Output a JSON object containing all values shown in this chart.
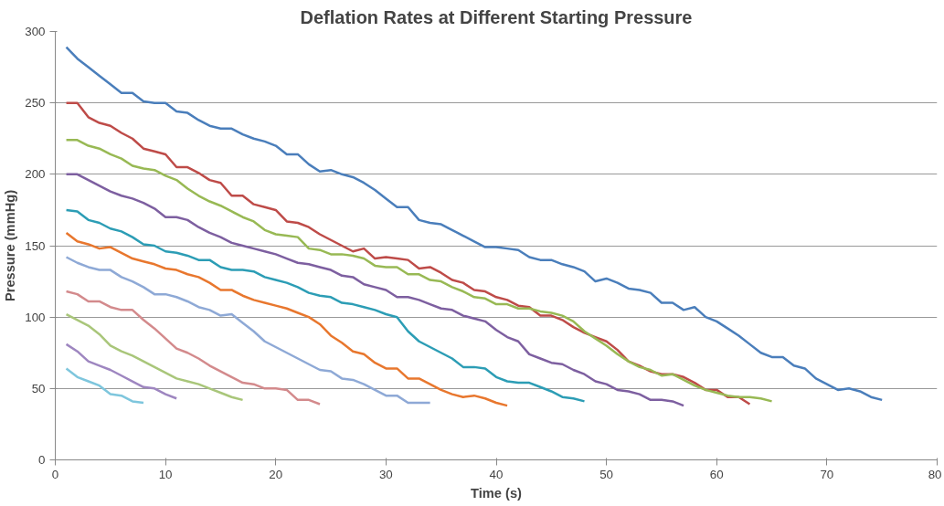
{
  "chart_data": {
    "type": "line",
    "title": "Deflation Rates at Different Starting Pressure",
    "xlabel": "Time (s)",
    "ylabel": "Pressure (mmHg)",
    "xlim": [
      0,
      80
    ],
    "xticks": [
      0,
      10,
      20,
      30,
      40,
      50,
      60,
      70,
      80
    ],
    "ylim": [
      0,
      300
    ],
    "yticks": [
      0,
      50,
      100,
      150,
      200,
      250,
      300
    ],
    "grid": "y",
    "marker": "none",
    "line_style": "solid",
    "series": [
      {
        "color": "#4a7ebb",
        "x": [
          1,
          2,
          3,
          4,
          5,
          6,
          7,
          8,
          9,
          10,
          11,
          12,
          13,
          14,
          15,
          16,
          17,
          18,
          19,
          20,
          21,
          22,
          23,
          24,
          25,
          26,
          27,
          28,
          29,
          30,
          31,
          32,
          33,
          34,
          35,
          36,
          37,
          38,
          39,
          40,
          41,
          42,
          43,
          44,
          45,
          46,
          47,
          48,
          49,
          50,
          51,
          52,
          53,
          54,
          55,
          56,
          57,
          58,
          59,
          60,
          61,
          62,
          63,
          64,
          65,
          66,
          67,
          68,
          69,
          70,
          71,
          72,
          73,
          74,
          75
        ],
        "values": [
          289,
          281,
          275,
          269,
          263,
          257,
          257,
          251,
          250,
          250,
          244,
          243,
          238,
          234,
          232,
          232,
          228,
          225,
          223,
          220,
          214,
          214,
          207,
          202,
          203,
          200,
          198,
          194,
          189,
          183,
          177,
          177,
          168,
          166,
          165,
          161,
          157,
          153,
          149,
          149,
          148,
          147,
          142,
          140,
          140,
          137,
          135,
          132,
          125,
          127,
          124,
          120,
          119,
          117,
          110,
          110,
          105,
          107,
          100,
          97,
          92,
          87,
          81,
          75,
          72,
          72,
          66,
          64,
          57,
          53,
          49,
          50,
          48,
          44,
          42
        ]
      },
      {
        "color": "#be4b48",
        "x": [
          1,
          2,
          3,
          4,
          5,
          6,
          7,
          8,
          9,
          10,
          11,
          12,
          13,
          14,
          15,
          16,
          17,
          18,
          19,
          20,
          21,
          22,
          23,
          24,
          25,
          26,
          27,
          28,
          29,
          30,
          31,
          32,
          33,
          34,
          35,
          36,
          37,
          38,
          39,
          40,
          41,
          42,
          43,
          44,
          45,
          46,
          47,
          48,
          49,
          50,
          51,
          52,
          53,
          54,
          55,
          56,
          57,
          58,
          59,
          60,
          61,
          62,
          63
        ],
        "values": [
          250,
          250,
          240,
          236,
          234,
          229,
          225,
          218,
          216,
          214,
          205,
          205,
          201,
          196,
          194,
          185,
          185,
          179,
          177,
          175,
          167,
          166,
          163,
          158,
          154,
          150,
          146,
          148,
          141,
          142,
          141,
          140,
          134,
          135,
          131,
          126,
          124,
          119,
          118,
          114,
          112,
          108,
          107,
          101,
          101,
          98,
          93,
          89,
          86,
          83,
          77,
          69,
          66,
          62,
          60,
          60,
          58,
          54,
          49,
          49,
          44,
          44,
          39
        ]
      },
      {
        "color": "#98b954",
        "x": [
          1,
          2,
          3,
          4,
          5,
          6,
          7,
          8,
          9,
          10,
          11,
          12,
          13,
          14,
          15,
          16,
          17,
          18,
          19,
          20,
          21,
          22,
          23,
          24,
          25,
          26,
          27,
          28,
          29,
          30,
          31,
          32,
          33,
          34,
          35,
          36,
          37,
          38,
          39,
          40,
          41,
          42,
          43,
          44,
          45,
          46,
          47,
          48,
          49,
          50,
          51,
          52,
          53,
          54,
          55,
          56,
          57,
          58,
          59,
          60,
          61,
          62,
          63,
          64,
          65
        ],
        "values": [
          224,
          224,
          220,
          218,
          214,
          211,
          206,
          204,
          203,
          199,
          196,
          190,
          185,
          181,
          178,
          174,
          170,
          167,
          161,
          158,
          157,
          156,
          148,
          147,
          144,
          144,
          143,
          141,
          136,
          135,
          135,
          130,
          130,
          126,
          125,
          121,
          118,
          114,
          113,
          109,
          109,
          106,
          106,
          104,
          103,
          101,
          97,
          90,
          85,
          80,
          74,
          69,
          65,
          63,
          59,
          60,
          56,
          52,
          49,
          47,
          45,
          44,
          44,
          43,
          41
        ]
      },
      {
        "color": "#7d5fa0",
        "x": [
          1,
          2,
          3,
          4,
          5,
          6,
          7,
          8,
          9,
          10,
          11,
          12,
          13,
          14,
          15,
          16,
          17,
          18,
          19,
          20,
          21,
          22,
          23,
          24,
          25,
          26,
          27,
          28,
          29,
          30,
          31,
          32,
          33,
          34,
          35,
          36,
          37,
          38,
          39,
          40,
          41,
          42,
          43,
          44,
          45,
          46,
          47,
          48,
          49,
          50,
          51,
          52,
          53,
          54,
          55,
          56,
          57
        ],
        "values": [
          200,
          200,
          196,
          192,
          188,
          185,
          183,
          180,
          176,
          170,
          170,
          168,
          163,
          159,
          156,
          152,
          150,
          148,
          146,
          144,
          141,
          138,
          137,
          135,
          133,
          129,
          128,
          123,
          121,
          119,
          114,
          114,
          112,
          109,
          106,
          105,
          101,
          99,
          97,
          91,
          86,
          83,
          74,
          71,
          68,
          67,
          63,
          60,
          55,
          53,
          49,
          48,
          46,
          42,
          42,
          41,
          38
        ]
      },
      {
        "color": "#2c9db5",
        "x": [
          1,
          2,
          3,
          4,
          5,
          6,
          7,
          8,
          9,
          10,
          11,
          12,
          13,
          14,
          15,
          16,
          17,
          18,
          19,
          20,
          21,
          22,
          23,
          24,
          25,
          26,
          27,
          28,
          29,
          30,
          31,
          32,
          33,
          34,
          35,
          36,
          37,
          38,
          39,
          40,
          41,
          42,
          43,
          44,
          45,
          46,
          47,
          48
        ],
        "values": [
          175,
          174,
          168,
          166,
          162,
          160,
          156,
          151,
          150,
          146,
          145,
          143,
          140,
          140,
          135,
          133,
          133,
          132,
          128,
          126,
          124,
          121,
          117,
          115,
          114,
          110,
          109,
          107,
          105,
          102,
          100,
          90,
          83,
          79,
          75,
          71,
          65,
          65,
          64,
          58,
          55,
          54,
          54,
          51,
          48,
          44,
          43,
          41
        ]
      },
      {
        "color": "#e8772e",
        "x": [
          1,
          2,
          3,
          4,
          5,
          6,
          7,
          8,
          9,
          10,
          11,
          12,
          13,
          14,
          15,
          16,
          17,
          18,
          19,
          20,
          21,
          22,
          23,
          24,
          25,
          26,
          27,
          28,
          29,
          30,
          31,
          32,
          33,
          34,
          35,
          36,
          37,
          38,
          39,
          40,
          41
        ],
        "values": [
          159,
          153,
          151,
          148,
          149,
          145,
          141,
          139,
          137,
          134,
          133,
          130,
          128,
          124,
          119,
          119,
          115,
          112,
          110,
          108,
          106,
          103,
          100,
          95,
          87,
          82,
          76,
          74,
          68,
          64,
          64,
          57,
          57,
          53,
          49,
          46,
          44,
          45,
          43,
          40,
          38
        ]
      },
      {
        "color": "#8ea9d6",
        "x": [
          1,
          2,
          3,
          4,
          5,
          6,
          7,
          8,
          9,
          10,
          11,
          12,
          13,
          14,
          15,
          16,
          17,
          18,
          19,
          20,
          21,
          22,
          23,
          24,
          25,
          26,
          27,
          28,
          29,
          30,
          31,
          32,
          33,
          34
        ],
        "values": [
          142,
          138,
          135,
          133,
          133,
          128,
          125,
          121,
          116,
          116,
          114,
          111,
          107,
          105,
          101,
          102,
          96,
          90,
          83,
          79,
          75,
          71,
          67,
          63,
          62,
          57,
          56,
          53,
          49,
          45,
          45,
          40,
          40,
          40
        ]
      },
      {
        "color": "#d38a8c",
        "x": [
          1,
          2,
          3,
          4,
          5,
          6,
          7,
          8,
          9,
          10,
          11,
          12,
          13,
          14,
          15,
          16,
          17,
          18,
          19,
          20,
          21,
          22,
          23,
          24
        ],
        "values": [
          118,
          116,
          111,
          111,
          107,
          105,
          105,
          98,
          92,
          85,
          78,
          75,
          71,
          66,
          62,
          58,
          54,
          53,
          50,
          50,
          49,
          42,
          42,
          39
        ]
      },
      {
        "color": "#a9c67a",
        "x": [
          1,
          2,
          3,
          4,
          5,
          6,
          7,
          8,
          9,
          10,
          11,
          12,
          13,
          14,
          15,
          16,
          17
        ],
        "values": [
          102,
          98,
          94,
          88,
          80,
          76,
          73,
          69,
          65,
          61,
          57,
          55,
          53,
          50,
          47,
          44,
          42
        ]
      },
      {
        "color": "#9e86c0",
        "x": [
          1,
          2,
          3,
          4,
          5,
          6,
          7,
          8,
          9,
          10,
          11
        ],
        "values": [
          81,
          76,
          69,
          66,
          63,
          59,
          55,
          51,
          50,
          46,
          43
        ]
      },
      {
        "color": "#7ec6dd",
        "x": [
          1,
          2,
          3,
          4,
          5,
          6,
          7,
          8
        ],
        "values": [
          64,
          58,
          55,
          52,
          46,
          45,
          41,
          40
        ]
      }
    ]
  }
}
